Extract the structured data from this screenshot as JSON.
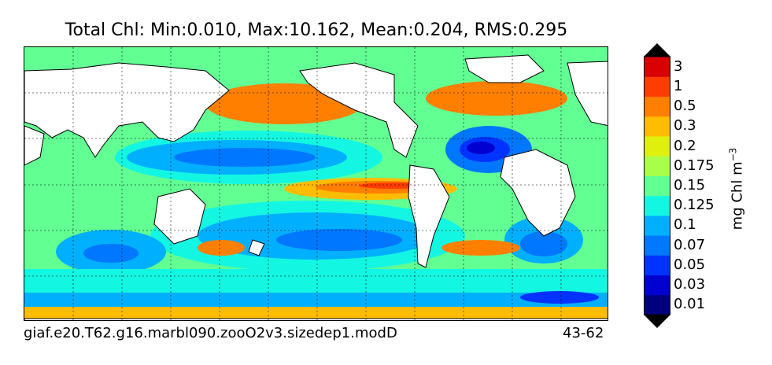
{
  "title": "Total Chl: Min:0.010, Max:10.162, Mean:0.204, RMS:0.295",
  "footer": {
    "case_name": "giaf.e20.T62.g16.marbl090.zooO2v3.sizedep1.modD",
    "years": "43-62"
  },
  "colorbar": {
    "unit_label": "mg Chl m",
    "unit_exponent": "−3",
    "levels": [
      "0.01",
      "0.03",
      "0.05",
      "0.07",
      "0.1",
      "0.125",
      "0.15",
      "0.175",
      "0.2",
      "0.3",
      "0.5",
      "1",
      "3"
    ],
    "colors": [
      "#00007f",
      "#0000d0",
      "#0033ff",
      "#0077ff",
      "#00b0ff",
      "#13f7e2",
      "#62ff93",
      "#a8ff4a",
      "#dff00f",
      "#ffbc00",
      "#ff7f00",
      "#ff3d00",
      "#d80000",
      "#7f0000"
    ]
  },
  "map": {
    "land_color": "#ffffff",
    "gridlines": "dotted",
    "coastline_color": "#000000"
  }
}
